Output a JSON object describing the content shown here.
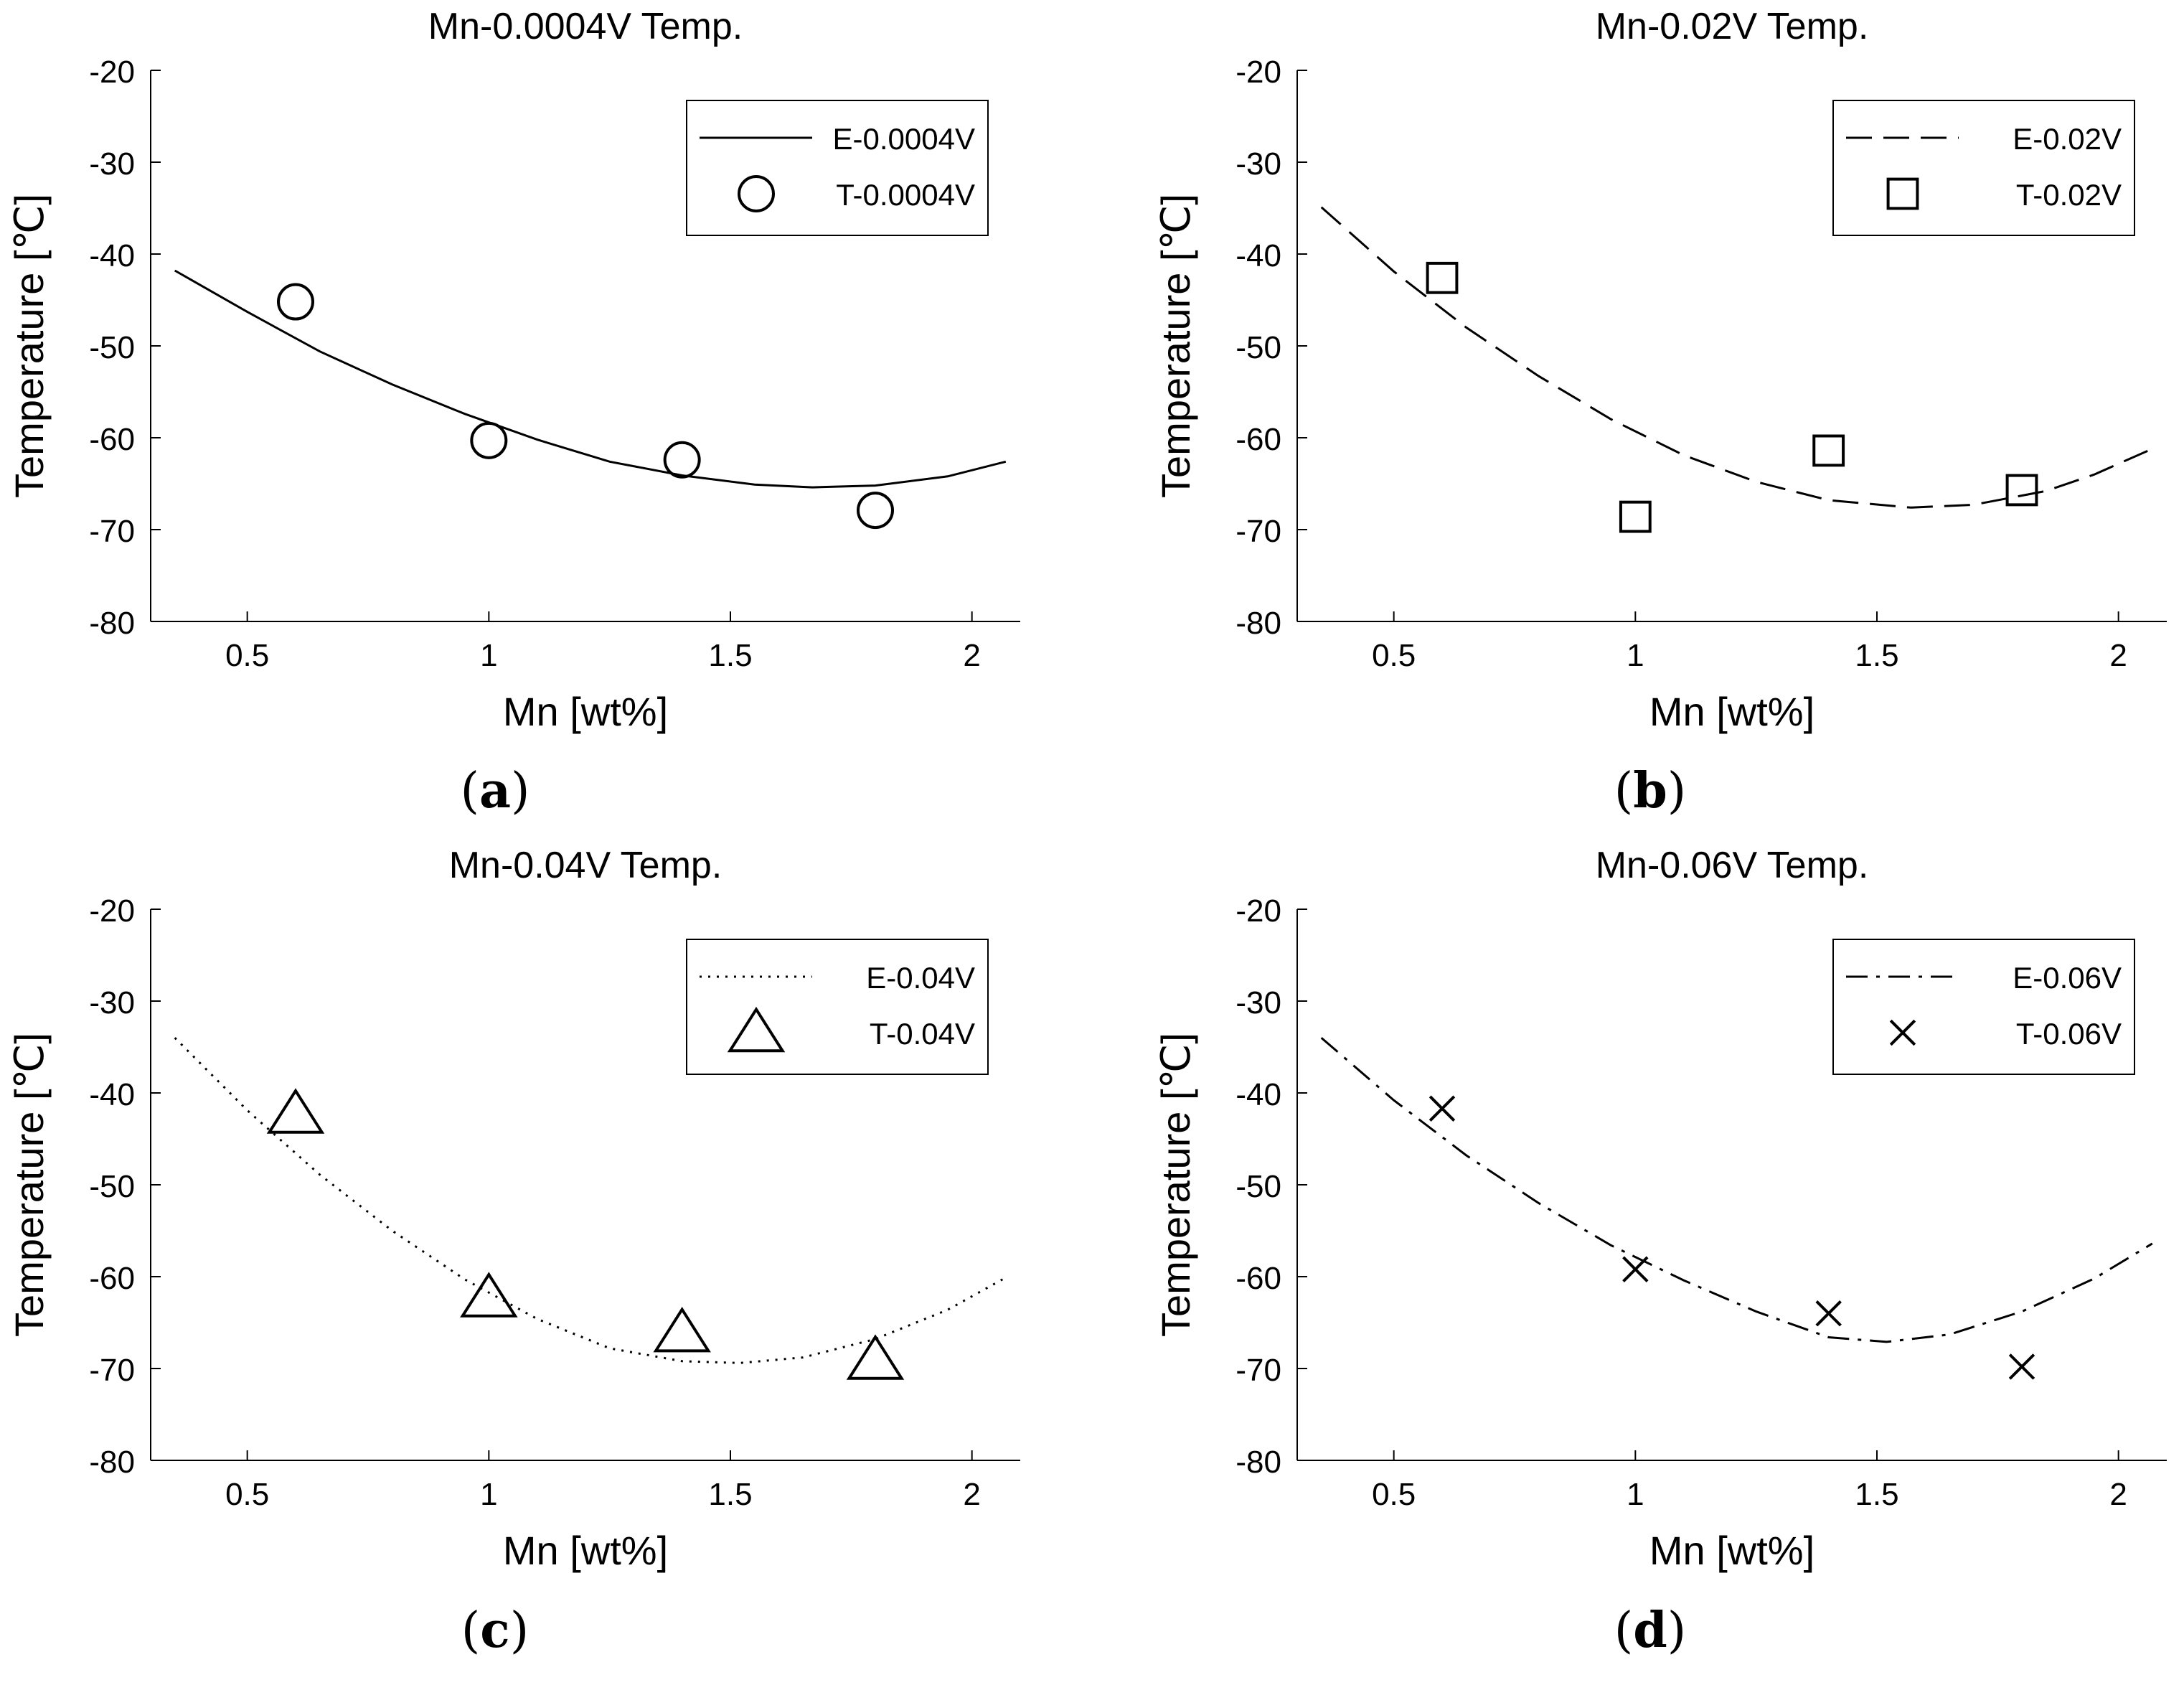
{
  "chart_data": [
    {
      "type": "line",
      "panel_label": "a",
      "title": "Mn-0.0004V Temp.",
      "xlabel": "Mn [wt%]",
      "ylabel": "Temperature [℃]",
      "xlim": [
        0.3,
        2.1
      ],
      "ylim": [
        -80,
        -20
      ],
      "xticks": [
        0.5,
        1,
        1.5,
        2
      ],
      "xtick_labels": [
        "0.5",
        "1",
        "1.5",
        "2"
      ],
      "yticks": [
        -80,
        -70,
        -60,
        -50,
        -40,
        -30,
        -20
      ],
      "ytick_labels": [
        "-80",
        "-70",
        "-60",
        "-50",
        "-40",
        "-30",
        "-20"
      ],
      "grid": false,
      "legend_position": "top-right",
      "series": [
        {
          "name": "E-0.0004V",
          "kind": "line",
          "line_style": "solid",
          "x": [
            0.35,
            0.5,
            0.65,
            0.8,
            0.95,
            1.1,
            1.25,
            1.4,
            1.55,
            1.67,
            1.8,
            1.95,
            2.07
          ],
          "y": [
            -41.8,
            -46.3,
            -50.6,
            -54.2,
            -57.4,
            -60.2,
            -62.6,
            -64.1,
            -65.1,
            -65.4,
            -65.2,
            -64.2,
            -62.6
          ]
        },
        {
          "name": "T-0.0004V",
          "kind": "marker",
          "marker": "circle",
          "x": [
            0.6,
            1.0,
            1.4,
            1.8
          ],
          "y": [
            -45.2,
            -60.3,
            -62.4,
            -67.9
          ]
        }
      ]
    },
    {
      "type": "line",
      "panel_label": "b",
      "title": "Mn-0.02V Temp.",
      "xlabel": "Mn [wt%]",
      "ylabel": "Temperature [℃]",
      "xlim": [
        0.3,
        2.1
      ],
      "ylim": [
        -80,
        -20
      ],
      "xticks": [
        0.5,
        1,
        1.5,
        2
      ],
      "xtick_labels": [
        "0.5",
        "1",
        "1.5",
        "2"
      ],
      "yticks": [
        -80,
        -70,
        -60,
        -50,
        -40,
        -30,
        -20
      ],
      "ytick_labels": [
        "-80",
        "-70",
        "-60",
        "-50",
        "-40",
        "-30",
        "-20"
      ],
      "grid": false,
      "legend_position": "top-right",
      "series": [
        {
          "name": "E-0.02V",
          "kind": "line",
          "line_style": "dashed",
          "x": [
            0.35,
            0.5,
            0.65,
            0.8,
            0.95,
            1.1,
            1.25,
            1.4,
            1.57,
            1.7,
            1.85,
            1.95,
            2.07
          ],
          "y": [
            -34.9,
            -41.9,
            -48.0,
            -53.3,
            -58.0,
            -61.9,
            -64.8,
            -66.8,
            -67.6,
            -67.3,
            -65.8,
            -64.0,
            -61.2
          ]
        },
        {
          "name": "T-0.02V",
          "kind": "marker",
          "marker": "square",
          "x": [
            0.6,
            1.0,
            1.4,
            1.8
          ],
          "y": [
            -42.6,
            -68.6,
            -61.4,
            -65.7
          ]
        }
      ]
    },
    {
      "type": "line",
      "panel_label": "c",
      "title": "Mn-0.04V Temp.",
      "xlabel": "Mn [wt%]",
      "ylabel": "Temperature [℃]",
      "xlim": [
        0.3,
        2.1
      ],
      "ylim": [
        -80,
        -20
      ],
      "xticks": [
        0.5,
        1,
        1.5,
        2
      ],
      "xtick_labels": [
        "0.5",
        "1",
        "1.5",
        "2"
      ],
      "yticks": [
        -80,
        -70,
        -60,
        -50,
        -40,
        -30,
        -20
      ],
      "ytick_labels": [
        "-80",
        "-70",
        "-60",
        "-50",
        "-40",
        "-30",
        "-20"
      ],
      "grid": false,
      "legend_position": "top-right",
      "series": [
        {
          "name": "E-0.04V",
          "kind": "line",
          "line_style": "dotted",
          "x": [
            0.35,
            0.5,
            0.65,
            0.8,
            0.95,
            1.1,
            1.25,
            1.4,
            1.52,
            1.65,
            1.8,
            1.95,
            2.07
          ],
          "y": [
            -34.0,
            -41.9,
            -48.9,
            -55.0,
            -60.3,
            -64.6,
            -67.8,
            -69.2,
            -69.4,
            -68.8,
            -66.8,
            -63.6,
            -60.1
          ]
        },
        {
          "name": "T-0.04V",
          "kind": "marker",
          "marker": "triangle",
          "x": [
            0.6,
            1.0,
            1.4,
            1.8
          ],
          "y": [
            -42.3,
            -62.3,
            -66.1,
            -69.1
          ]
        }
      ]
    },
    {
      "type": "line",
      "panel_label": "d",
      "title": "Mn-0.06V Temp.",
      "xlabel": "Mn [wt%]",
      "ylabel": "Temperature [℃]",
      "xlim": [
        0.3,
        2.1
      ],
      "ylim": [
        -80,
        -20
      ],
      "xticks": [
        0.5,
        1,
        1.5,
        2
      ],
      "xtick_labels": [
        "0.5",
        "1",
        "1.5",
        "2"
      ],
      "yticks": [
        -80,
        -70,
        -60,
        -50,
        -40,
        -30,
        -20
      ],
      "ytick_labels": [
        "-80",
        "-70",
        "-60",
        "-50",
        "-40",
        "-30",
        "-20"
      ],
      "grid": false,
      "legend_position": "top-right",
      "series": [
        {
          "name": "E-0.06V",
          "kind": "line",
          "line_style": "dashdot",
          "x": [
            0.35,
            0.5,
            0.65,
            0.8,
            0.95,
            1.1,
            1.25,
            1.4,
            1.52,
            1.65,
            1.8,
            1.95,
            2.07
          ],
          "y": [
            -34.0,
            -40.8,
            -46.8,
            -52.0,
            -56.6,
            -60.4,
            -63.8,
            -66.6,
            -67.1,
            -66.3,
            -63.8,
            -60.2,
            -56.4
          ]
        },
        {
          "name": "T-0.06V",
          "kind": "marker",
          "marker": "x",
          "x": [
            0.6,
            1.0,
            1.4,
            1.8
          ],
          "y": [
            -41.7,
            -59.2,
            -64.0,
            -69.8
          ]
        }
      ]
    }
  ]
}
